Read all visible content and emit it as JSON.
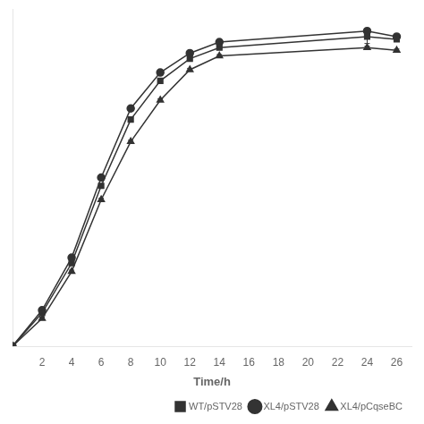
{
  "chart_data": {
    "type": "line",
    "xlabel": "Time/h",
    "x": [
      0,
      2,
      4,
      6,
      8,
      10,
      12,
      14,
      24,
      26
    ],
    "series": [
      {
        "name": "WT/pSTV28",
        "color": "#333333",
        "marker": "square",
        "line_style": "solid",
        "values": [
          0.0,
          0.12,
          0.3,
          0.58,
          0.82,
          0.96,
          1.04,
          1.08,
          1.12,
          1.11
        ],
        "yerr": [
          0.0,
          0.005,
          0.005,
          0.005,
          0.005,
          0.005,
          0.005,
          0.005,
          0.025,
          0.005
        ]
      },
      {
        "name": "XL4/pSTV28",
        "color": "#333333",
        "marker": "circle",
        "line_style": "solid",
        "values": [
          0.0,
          0.13,
          0.32,
          0.61,
          0.86,
          0.99,
          1.06,
          1.1,
          1.14,
          1.12
        ],
        "yerr": [
          0.0,
          0.005,
          0.005,
          0.005,
          0.005,
          0.005,
          0.005,
          0.005,
          0.005,
          0.005
        ]
      },
      {
        "name": "XL4/pCqseBC",
        "color": "#333333",
        "marker": "triangle",
        "line_style": "solid",
        "values": [
          0.0,
          0.1,
          0.27,
          0.53,
          0.74,
          0.89,
          1.0,
          1.05,
          1.08,
          1.07
        ],
        "yerr": [
          0.0,
          0.005,
          0.005,
          0.005,
          0.005,
          0.005,
          0.005,
          0.005,
          0.005,
          0.005
        ]
      }
    ],
    "xlim": [
      0,
      27
    ],
    "xticks": [
      2,
      4,
      6,
      8,
      10,
      12,
      14,
      16,
      18,
      20,
      22,
      24,
      26
    ],
    "ylim": [
      0,
      1.22
    ],
    "grid": false,
    "legend": "lower right",
    "tick_labels": "x"
  }
}
